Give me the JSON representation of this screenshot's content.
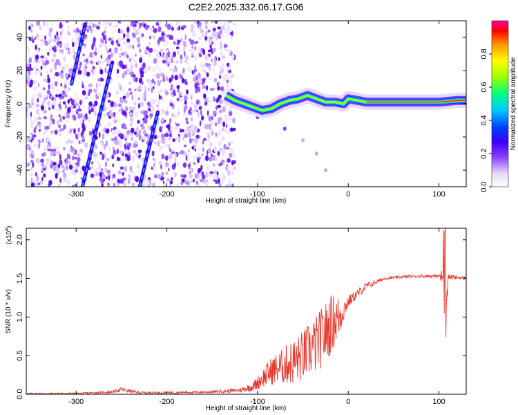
{
  "title": "C2E2.2025.332.06.17.G06",
  "colors": {
    "snr_line": "#e8332a",
    "axis": "#000000"
  },
  "chart_data": [
    {
      "type": "heatmap",
      "name": "spectrogram",
      "xlabel": "Height of straight line (km)",
      "ylabel": "Frequency (Hz)",
      "xlim": [
        -355,
        130
      ],
      "ylim": [
        -50,
        50
      ],
      "xticks": [
        -300,
        -200,
        -100,
        0,
        100
      ],
      "yticks": [
        -40,
        -20,
        0,
        20,
        40
      ],
      "colorbar": {
        "label": "Normalized spectral amplitude",
        "range": [
          0,
          1
        ],
        "ticks": [
          "0.0",
          "0.2",
          "0.4",
          "0.6",
          "0.8"
        ],
        "tick_values": [
          0.0,
          0.2,
          0.4,
          0.6,
          0.8
        ],
        "colormap": [
          "#ffffff",
          "#e6d8ff",
          "#8a3cff",
          "#3a00ff",
          "#0040ff",
          "#00c8ff",
          "#00ff80",
          "#a0ff00",
          "#ffff00",
          "#ff9000",
          "#ff0000",
          "#ff00a0"
        ]
      },
      "features": {
        "noise_region_x": [
          -355,
          -125
        ],
        "main_trace": {
          "x": [
            -135,
            -125,
            -115,
            -105,
            -95,
            -85,
            -75,
            -65,
            -55,
            -45,
            -35,
            -25,
            -15,
            -5,
            0,
            10,
            20,
            40,
            60,
            80,
            100,
            120,
            130
          ],
          "y": [
            5,
            2,
            0,
            -2,
            -4,
            -3,
            0,
            2,
            3,
            5,
            3,
            1,
            1,
            0,
            3,
            2,
            1,
            1,
            1,
            1,
            1,
            2,
            2
          ]
        },
        "diagonal_streaks": [
          {
            "x": [
              -305,
              -290
            ],
            "y": [
              12,
              48
            ]
          },
          {
            "x": [
              -293,
              -260
            ],
            "y": [
              -50,
              25
            ]
          },
          {
            "x": [
              -230,
              -210
            ],
            "y": [
              -50,
              -5
            ]
          }
        ],
        "secondary_trace": {
          "x": [
            -100,
            -70,
            -50,
            -35,
            -25
          ],
          "y": [
            -8,
            -15,
            -22,
            -30,
            -40
          ]
        }
      }
    },
    {
      "type": "line",
      "name": "snr",
      "xlabel": "Height of straight line (km)",
      "ylabel": "SNR (10 * v/v)",
      "scale_note": "(x10",
      "scale_exp": "4",
      "xlim": [
        -355,
        130
      ],
      "ylim": [
        0,
        2.15
      ],
      "xticks": [
        -300,
        -200,
        -100,
        0,
        100
      ],
      "yticks": [
        0.0,
        0.5,
        1.0,
        1.5,
        2.0
      ],
      "yticklabels": [
        "0.0",
        "0.5",
        "1.0",
        "1.5",
        "2.0"
      ],
      "series": [
        {
          "name": "SNR",
          "x": [
            -355,
            -300,
            -260,
            -250,
            -230,
            -200,
            -150,
            -120,
            -105,
            -95,
            -85,
            -75,
            -65,
            -55,
            -45,
            -35,
            -25,
            -20,
            -15,
            -10,
            -5,
            0,
            10,
            20,
            30,
            40,
            60,
            80,
            100,
            105,
            107,
            110,
            120,
            130
          ],
          "values": [
            0.01,
            0.01,
            0.03,
            0.06,
            0.02,
            0.02,
            0.03,
            0.05,
            0.1,
            0.2,
            0.3,
            0.35,
            0.4,
            0.45,
            0.55,
            0.65,
            0.8,
            0.9,
            0.95,
            1.0,
            1.1,
            1.2,
            1.3,
            1.4,
            1.45,
            1.5,
            1.52,
            1.53,
            1.53,
            1.5,
            1.0,
            1.52,
            1.51,
            1.51
          ],
          "noise_amp": [
            0.008,
            0.01,
            0.015,
            0.03,
            0.015,
            0.015,
            0.015,
            0.03,
            0.06,
            0.12,
            0.18,
            0.22,
            0.28,
            0.32,
            0.35,
            0.38,
            0.4,
            0.4,
            0.35,
            0.3,
            0.15,
            0.08,
            0.06,
            0.05,
            0.03,
            0.02,
            0.02,
            0.02,
            0.02,
            0.15,
            0.6,
            0.05,
            0.02,
            0.02
          ]
        }
      ]
    }
  ]
}
